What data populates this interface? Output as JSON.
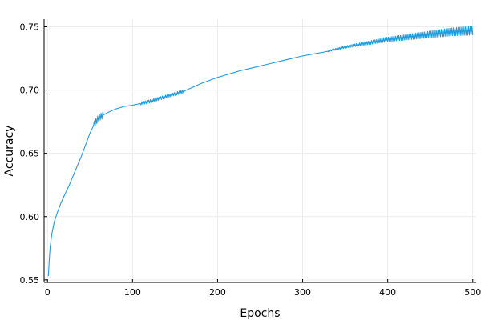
{
  "chart_data": {
    "type": "line",
    "title": "",
    "xlabel": "Epochs",
    "ylabel": "Accuracy",
    "xlim": [
      -4,
      504
    ],
    "ylim": [
      0.548,
      0.756
    ],
    "xticks": [
      0,
      100,
      200,
      300,
      400,
      500
    ],
    "xtick_labels": [
      "0",
      "100",
      "200",
      "300",
      "400",
      "500"
    ],
    "yticks": [
      0.55,
      0.6,
      0.65,
      0.7,
      0.75
    ],
    "ytick_labels": [
      "0.55",
      "0.60",
      "0.65",
      "0.70",
      "0.75"
    ],
    "grid": true,
    "legend": "none",
    "colors": {
      "series": "#1f9bdc",
      "grid": "#ececec",
      "axis": "#000000"
    },
    "series": [
      {
        "name": "",
        "oscillation": [
          {
            "from": 55,
            "to": 65,
            "amplitude": 0.0025
          },
          {
            "from": 110,
            "to": 160,
            "amplitude": 0.0012
          },
          {
            "from": 330,
            "to": 500,
            "amplitude_start": 0.0005,
            "amplitude_end": 0.0035
          }
        ],
        "points": [
          [
            1,
            0.553
          ],
          [
            2,
            0.565
          ],
          [
            3,
            0.575
          ],
          [
            5,
            0.586
          ],
          [
            8,
            0.596
          ],
          [
            12,
            0.604
          ],
          [
            16,
            0.611
          ],
          [
            20,
            0.617
          ],
          [
            25,
            0.624
          ],
          [
            30,
            0.632
          ],
          [
            35,
            0.64
          ],
          [
            40,
            0.648
          ],
          [
            45,
            0.657
          ],
          [
            50,
            0.666
          ],
          [
            55,
            0.673
          ],
          [
            60,
            0.678
          ],
          [
            65,
            0.68
          ],
          [
            70,
            0.682
          ],
          [
            80,
            0.685
          ],
          [
            90,
            0.687
          ],
          [
            100,
            0.688
          ],
          [
            120,
            0.691
          ],
          [
            140,
            0.695
          ],
          [
            160,
            0.699
          ],
          [
            180,
            0.705
          ],
          [
            200,
            0.71
          ],
          [
            225,
            0.715
          ],
          [
            250,
            0.719
          ],
          [
            275,
            0.723
          ],
          [
            300,
            0.727
          ],
          [
            325,
            0.73
          ],
          [
            350,
            0.734
          ],
          [
            375,
            0.737
          ],
          [
            400,
            0.74
          ],
          [
            425,
            0.742
          ],
          [
            450,
            0.744
          ],
          [
            475,
            0.746
          ],
          [
            500,
            0.747
          ]
        ]
      }
    ]
  }
}
